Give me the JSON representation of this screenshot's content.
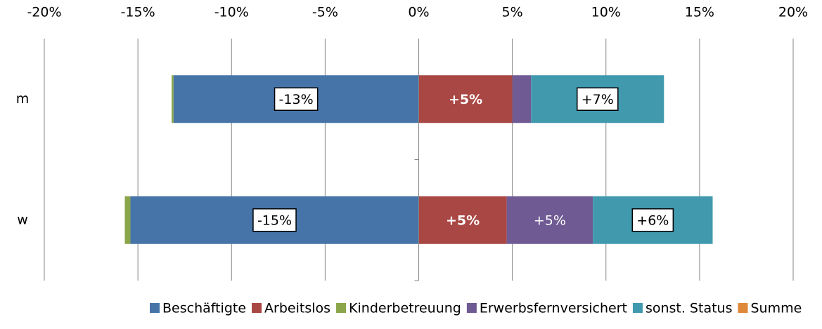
{
  "chart_data": {
    "type": "bar",
    "orientation": "horizontal",
    "stacked": true,
    "categories": [
      "m",
      "w"
    ],
    "series": [
      {
        "name": "Beschäftigte",
        "color": "#4674a8",
        "values": [
          -13.1,
          -15.4
        ],
        "value_labels": [
          "-13%",
          "-15%"
        ]
      },
      {
        "name": "Arbeitslos",
        "color": "#a94744",
        "values": [
          5.0,
          4.7
        ],
        "value_labels": [
          "+5%",
          "+5%"
        ]
      },
      {
        "name": "Kinderbetreuung",
        "color": "#8aa54a",
        "values": [
          -0.1,
          -0.3
        ]
      },
      {
        "name": "Erwerbsfernversichert",
        "color": "#6f5a93",
        "values": [
          1.0,
          4.6
        ],
        "value_labels": [
          null,
          "+5%"
        ]
      },
      {
        "name": "sonst. Status",
        "color": "#4199ae",
        "values": [
          7.1,
          6.4
        ],
        "value_labels": [
          "+7%",
          "+6%"
        ]
      },
      {
        "name": "Summe",
        "color": "#e0883a",
        "values": [
          null,
          null
        ]
      }
    ],
    "xlim": [
      -20,
      20
    ],
    "xticks": [
      {
        "value": -20,
        "label": "-20%"
      },
      {
        "value": -15,
        "label": "-15%"
      },
      {
        "value": -10,
        "label": "-10%"
      },
      {
        "value": -5,
        "label": "-5%"
      },
      {
        "value": 0,
        "label": "0%"
      },
      {
        "value": 5,
        "label": "5%"
      },
      {
        "value": 10,
        "label": "10%"
      },
      {
        "value": 15,
        "label": "15%"
      },
      {
        "value": 20,
        "label": "20%"
      }
    ],
    "grid": true,
    "legend": "bottom"
  }
}
